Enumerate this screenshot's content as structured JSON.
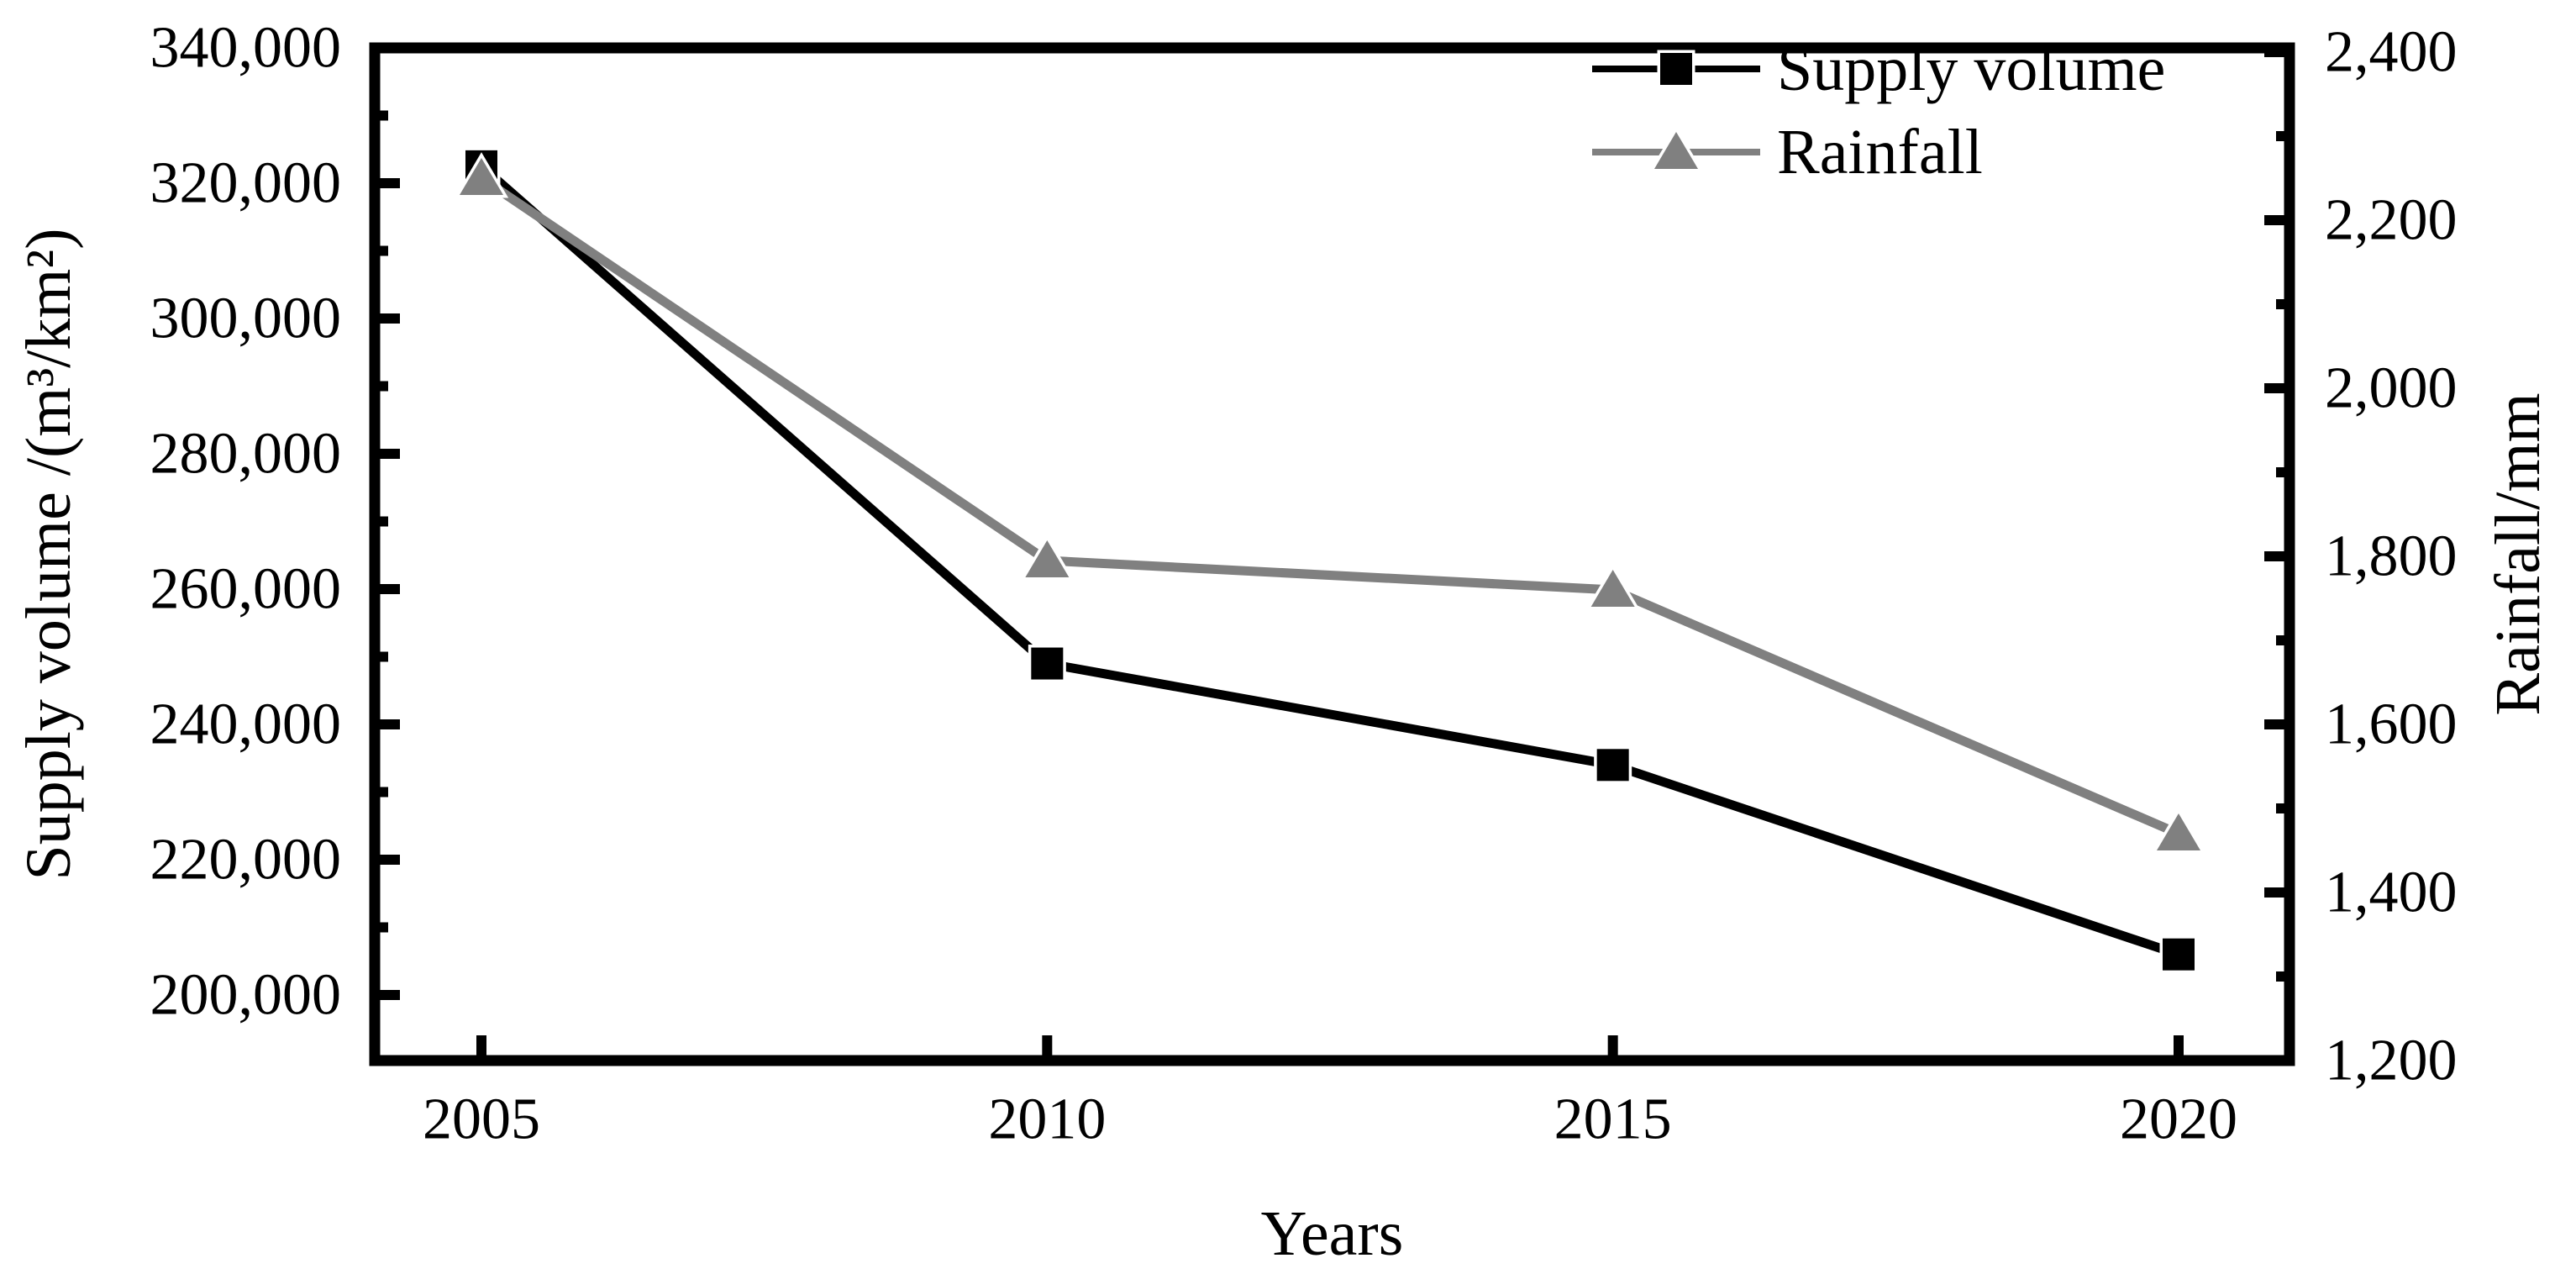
{
  "figure": {
    "background": "#ffffff",
    "text_color": "#000000"
  },
  "chart_data": {
    "type": "line",
    "title": "",
    "x": [
      2005,
      2010,
      2015,
      2020
    ],
    "x_axis": {
      "title": "Years",
      "tick_values": [
        2005,
        2010,
        2015,
        2020
      ],
      "tick_labels": [
        "2005",
        "2010",
        "2015",
        "2020"
      ]
    },
    "left_axis": {
      "title": "Supply volume /(m³/km²)",
      "tick_values": [
        200000,
        220000,
        240000,
        260000,
        280000,
        300000,
        320000,
        340000
      ],
      "tick_labels": [
        "200,000",
        "220,000",
        "240,000",
        "260,000",
        "280,000",
        "300,000",
        "320,000",
        "340,000"
      ],
      "minor_tick_values": [
        210000,
        230000,
        250000,
        270000,
        290000,
        310000,
        330000
      ],
      "range": [
        190300,
        340000
      ]
    },
    "right_axis": {
      "title": "Rainfall/mm",
      "tick_values": [
        1200,
        1400,
        1600,
        1800,
        2000,
        2200,
        2400
      ],
      "tick_labels": [
        "1,200",
        "1,400",
        "1,600",
        "1,800",
        "2,000",
        "2,200",
        "2,400"
      ],
      "minor_tick_values": [
        1300,
        1500,
        1700,
        1900,
        2100,
        2300
      ],
      "range": [
        1200,
        2405
      ]
    },
    "series": [
      {
        "name": "Supply volume",
        "axis": "left",
        "color": "#000000",
        "marker": "square",
        "values": [
          322500,
          249000,
          234000,
          206000
        ]
      },
      {
        "name": "Rainfall",
        "axis": "right",
        "color": "#808080",
        "marker": "triangle-up",
        "values": [
          2250,
          1795,
          1760,
          1470
        ]
      }
    ],
    "legend": {
      "position": "top-right-inside",
      "entries": [
        "Supply volume",
        "Rainfall"
      ]
    },
    "grid": false
  }
}
